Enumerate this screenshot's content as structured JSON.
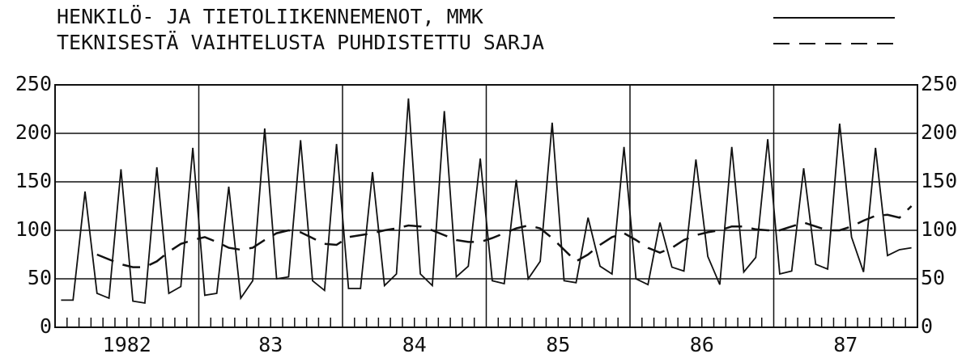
{
  "chart_data": {
    "type": "line",
    "x_labels": [
      "1982",
      "83",
      "84",
      "85",
      "86",
      "87"
    ],
    "series": [
      {
        "name": "HENKILÖ- JA TIETOLIIKENNEMENOT, MMK",
        "color": "#111",
        "dash": false,
        "values": [
          28,
          28,
          140,
          35,
          30,
          163,
          27,
          25,
          165,
          35,
          42,
          185,
          33,
          35,
          145,
          30,
          48,
          205,
          50,
          52,
          193,
          48,
          38,
          189,
          40,
          40,
          160,
          43,
          55,
          236,
          55,
          43,
          223,
          52,
          63,
          174,
          48,
          45,
          152,
          50,
          68,
          211,
          48,
          46,
          113,
          63,
          55,
          186,
          50,
          44,
          108,
          62,
          58,
          173,
          73,
          44,
          186,
          57,
          72,
          194,
          55,
          58,
          164,
          65,
          60,
          210,
          93,
          57,
          185,
          74,
          80,
          82
        ]
      },
      {
        "name": "TEKNISESTÄ VAIHTELUSTA PUHDISTETTU SARJA",
        "color": "#111",
        "dash": true,
        "values": [
          null,
          null,
          null,
          75,
          70,
          65,
          62,
          62,
          68,
          78,
          86,
          90,
          93,
          88,
          82,
          80,
          82,
          90,
          97,
          100,
          98,
          92,
          86,
          85,
          93,
          95,
          97,
          100,
          102,
          105,
          104,
          100,
          95,
          90,
          88,
          88,
          92,
          97,
          102,
          105,
          102,
          92,
          80,
          68,
          75,
          85,
          93,
          97,
          90,
          82,
          77,
          82,
          90,
          95,
          98,
          100,
          104,
          104,
          101,
          100,
          100,
          104,
          108,
          104,
          100,
          100,
          104,
          110,
          115,
          116,
          113,
          125
        ]
      }
    ],
    "ylim": [
      0,
      250
    ],
    "yticks": [
      0,
      50,
      100,
      150,
      200,
      250
    ],
    "grid": true,
    "right_axis_labels": true
  }
}
